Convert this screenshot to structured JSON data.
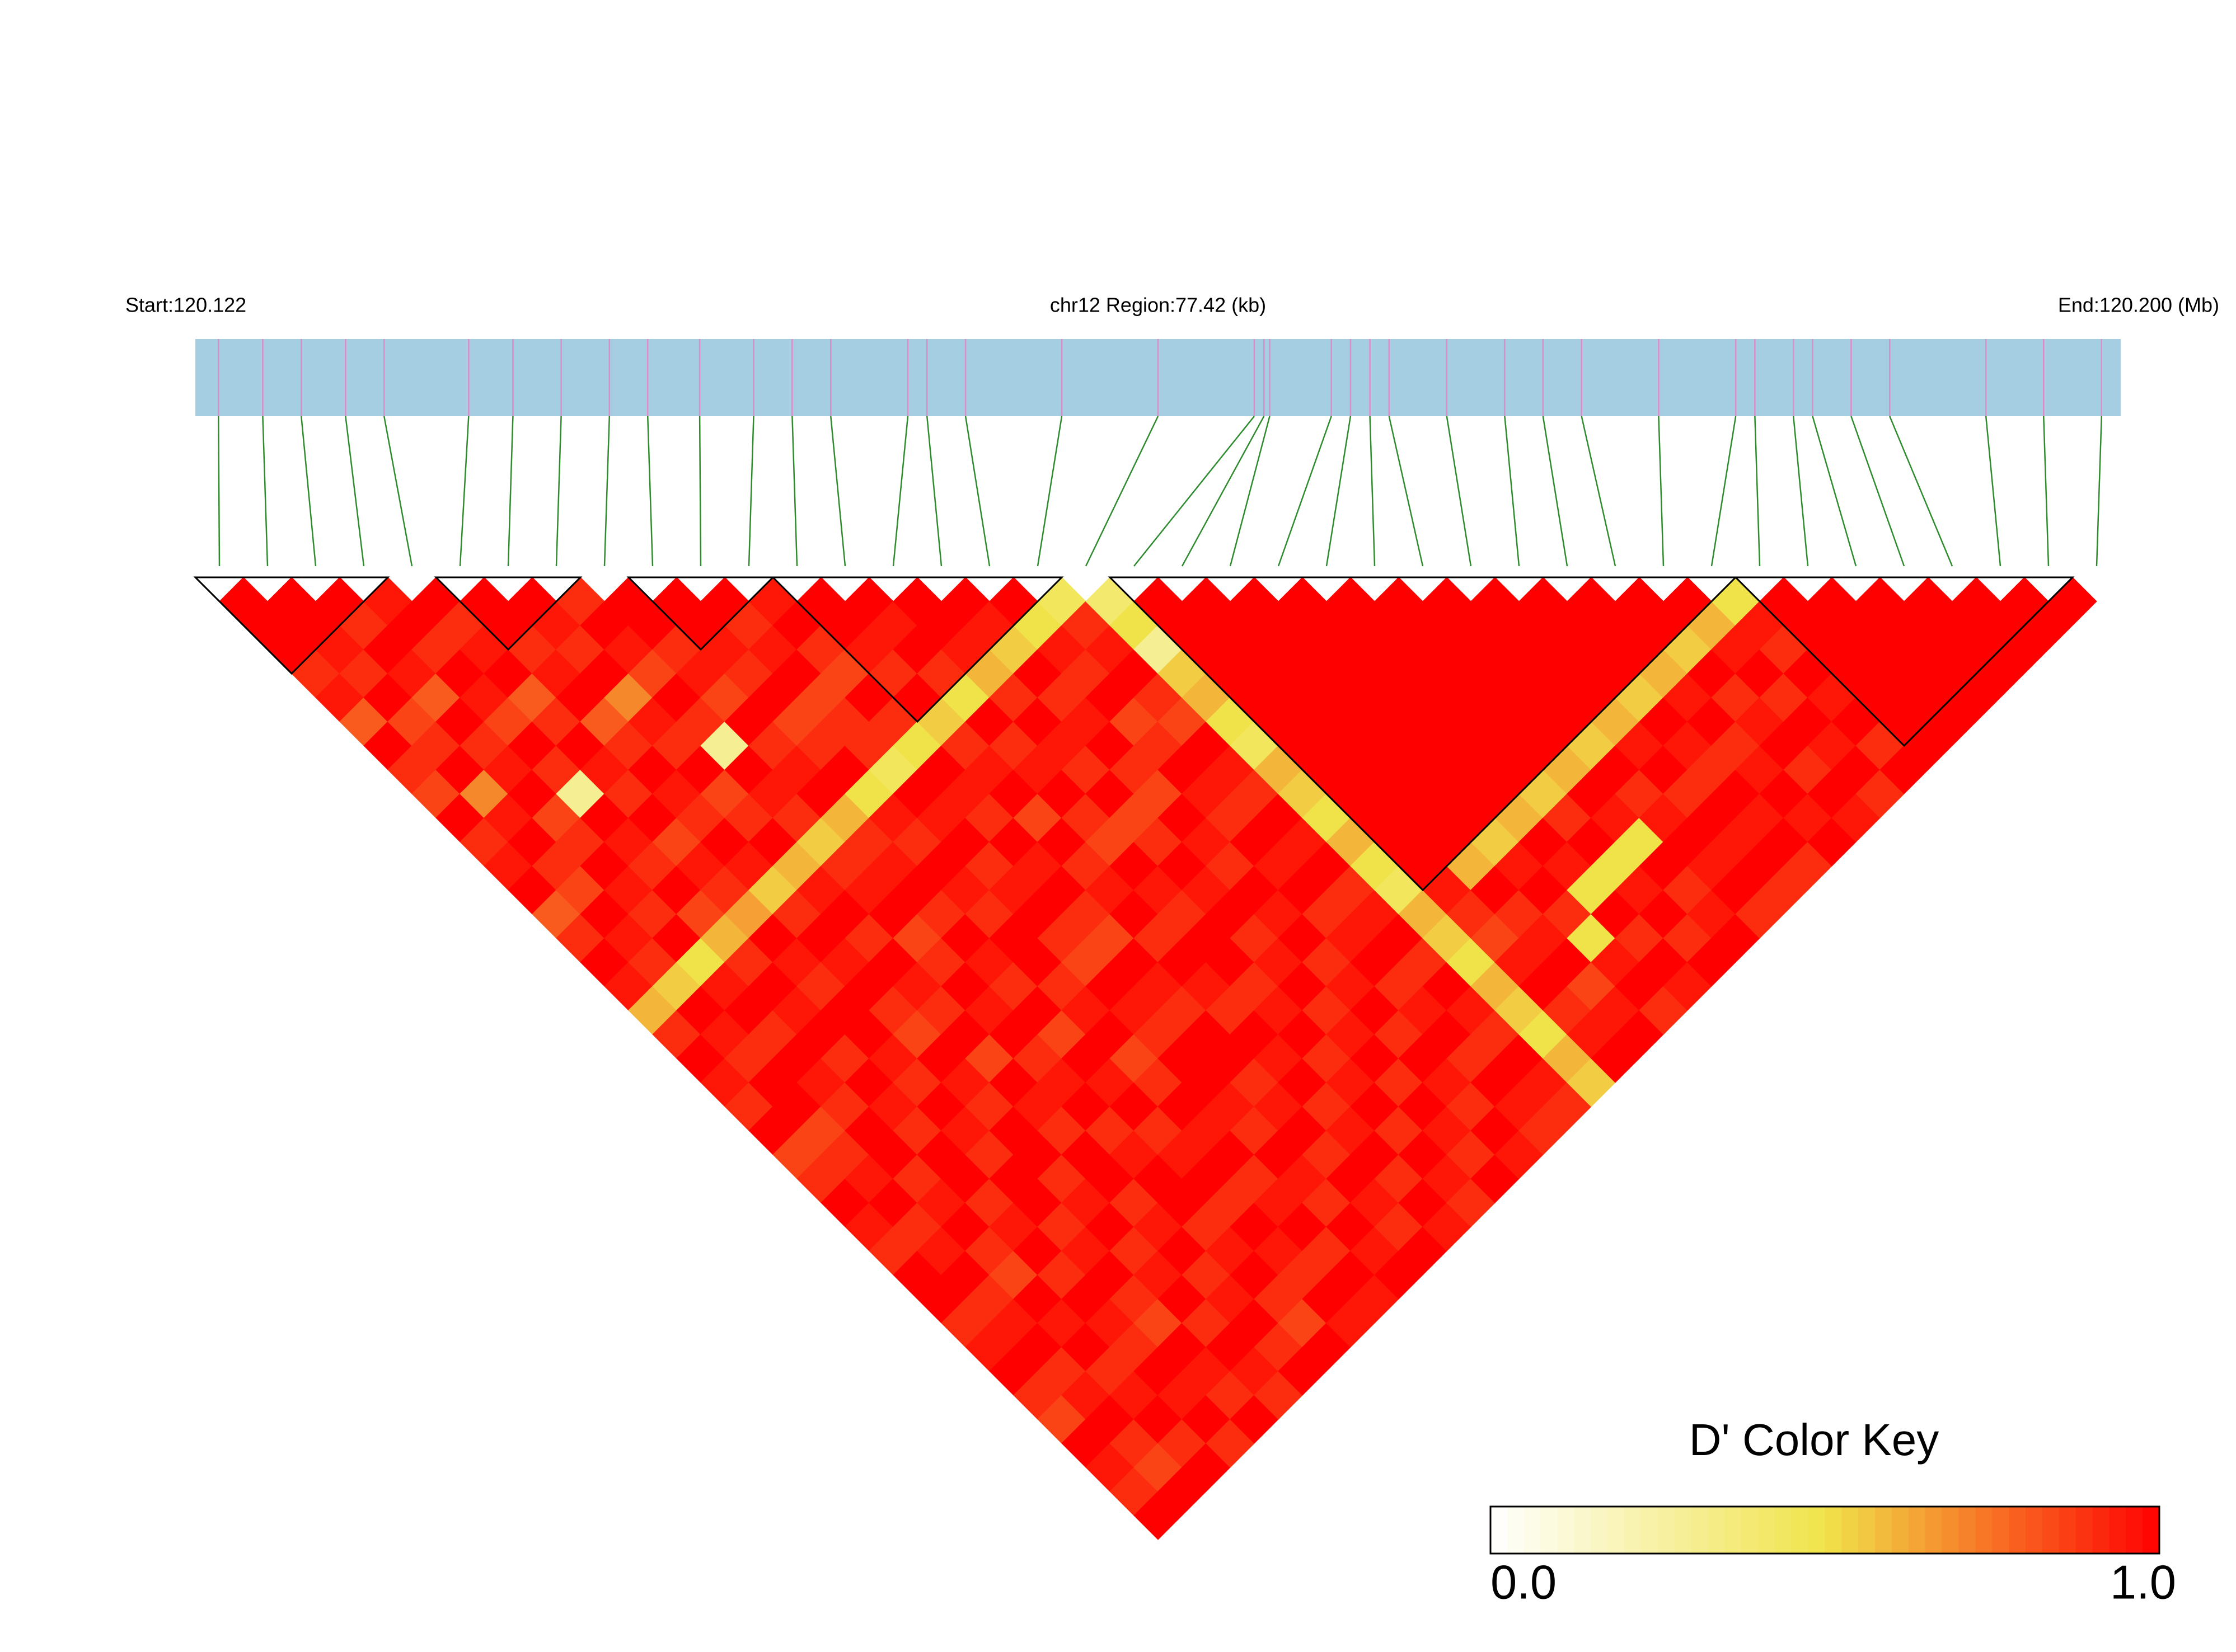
{
  "chart_data": {
    "type": "ld-heatmap",
    "start_label": "Start:120.122",
    "region_label": "chr12 Region:77.42 (kb)",
    "end_label": "End:120.200 (Mb)",
    "xlim": [
      120.1225,
      120.19992
    ],
    "positions": [
      120.12343,
      120.12521,
      120.12676,
      120.12854,
      120.13009,
      120.13349,
      120.13527,
      120.13721,
      120.13915,
      120.14069,
      120.14278,
      120.14495,
      120.1465,
      120.14805,
      120.15115,
      120.15192,
      120.15347,
      120.15734,
      120.16121,
      120.16508,
      120.16547,
      120.1657,
      120.16818,
      120.16895,
      120.16973,
      120.1705,
      120.17282,
      120.17515,
      120.17669,
      120.17824,
      120.18134,
      120.18444,
      120.18521,
      120.18676,
      120.18753,
      120.18908,
      120.19063,
      120.1945,
      120.19682,
      120.19915
    ],
    "ld": [
      [
        1,
        1,
        1,
        0.9,
        0.95,
        0.8,
        1,
        0.9,
        0.85,
        1,
        0.9,
        0.95,
        1,
        0.8,
        0.9,
        1,
        0.95,
        0.6,
        0.9,
        1,
        0.95,
        0.9,
        1,
        0.85,
        0.9,
        1,
        0.95,
        0.9,
        1,
        1,
        0.9,
        0.95,
        1,
        0.9,
        0.85,
        1,
        0.95,
        0.9,
        1
      ],
      [
        1,
        1,
        0.95,
        0.9,
        1,
        0.85,
        0.9,
        1,
        0.7,
        0.95,
        1,
        0.9,
        0.85,
        1,
        0.95,
        0.9,
        0.55,
        1,
        0.95,
        0.9,
        1,
        1,
        0.85,
        0.9,
        0.95,
        1,
        0.9,
        0.95,
        1,
        0.9,
        0.95,
        1,
        0.9,
        0.95,
        1,
        0.9,
        0.85,
        1
      ],
      [
        1,
        0.9,
        1,
        0.95,
        0.8,
        1,
        0.9,
        0.95,
        1,
        0.85,
        0.9,
        1,
        0.95,
        0.9,
        1,
        0.5,
        0.95,
        1,
        0.9,
        1,
        0.95,
        0.9,
        1,
        1,
        0.9,
        0.95,
        1,
        0.9,
        0.85,
        1,
        0.95,
        1,
        0.9,
        0.95,
        1,
        0.9,
        1
      ],
      [
        0.95,
        1,
        0.9,
        1,
        0.95,
        0.85,
        1,
        0.9,
        0.3,
        1,
        0.95,
        0.9,
        1,
        0.85,
        0.6,
        0.9,
        1,
        0.95,
        1,
        0.9,
        1,
        0.95,
        0.9,
        1,
        1,
        0.9,
        0.95,
        1,
        0.9,
        1,
        0.95,
        0.9,
        1,
        0.95,
        1,
        0.9
      ],
      [
        1,
        0.9,
        0.95,
        1,
        0.8,
        0.9,
        1,
        0.95,
        0.9,
        1,
        0.85,
        0.95,
        0.9,
        0.65,
        1,
        0.95,
        0.9,
        1,
        1,
        0.95,
        0.9,
        1,
        0.95,
        0.9,
        1,
        1,
        0.9,
        0.95,
        1,
        0.9,
        0.85,
        1,
        0.95,
        0.9,
        1
      ],
      [
        1,
        1,
        0.9,
        0.95,
        1,
        0.8,
        0.9,
        1,
        0.95,
        0.9,
        1,
        0.95,
        0.55,
        0.9,
        1,
        0.95,
        1,
        0.9,
        0.85,
        1,
        0.95,
        0.9,
        1,
        1,
        0.9,
        0.95,
        1,
        0.9,
        0.95,
        1,
        0.9,
        1,
        0.95,
        0.9
      ],
      [
        1,
        0.95,
        0.9,
        1,
        0.7,
        0.95,
        0.9,
        1,
        0.85,
        0.9,
        1,
        0.6,
        0.95,
        1,
        0.9,
        1,
        0.95,
        0.9,
        1,
        0.85,
        1,
        0.95,
        0.9,
        1,
        1,
        0.9,
        0.95,
        1,
        0.9,
        0.95,
        1,
        0.9,
        1
      ],
      [
        0.9,
        1,
        0.95,
        0.85,
        1,
        0.9,
        0.3,
        1,
        0.95,
        0.9,
        0.55,
        0.9,
        0.95,
        1,
        0.85,
        0.9,
        1,
        0.95,
        1,
        0.9,
        0.95,
        1,
        0.9,
        0.95,
        1,
        1,
        0.9,
        0.95,
        1,
        0.9,
        0.85,
        1
      ],
      [
        1,
        1,
        0.9,
        0.95,
        0.85,
        1,
        0.9,
        0.95,
        1,
        0.6,
        0.9,
        0.95,
        1,
        0.9,
        1,
        0.95,
        0.9,
        1,
        0.85,
        1,
        0.95,
        1,
        0.9,
        0.95,
        1,
        0.9,
        1,
        0.95,
        0.9,
        1,
        0.95
      ],
      [
        1,
        1,
        0.95,
        0.9,
        1,
        0.85,
        0.9,
        1,
        0.5,
        0.95,
        0.9,
        1,
        0.95,
        0.9,
        1,
        1,
        0.9,
        0.95,
        1,
        0.85,
        0.9,
        1,
        0.95,
        1,
        0.9,
        0.95,
        1,
        0.9,
        1,
        0.95
      ],
      [
        1,
        0.9,
        0.95,
        1,
        0.85,
        0.9,
        0.9,
        0.45,
        1,
        0.95,
        1,
        0.9,
        0.95,
        1,
        0.9,
        0.85,
        1,
        0.95,
        0.9,
        1,
        1,
        0.95,
        0.9,
        1,
        0.95,
        0.9,
        1,
        0.95,
        1
      ],
      [
        0.95,
        1,
        0.9,
        0.85,
        1,
        0.9,
        0.5,
        1,
        0.95,
        0.9,
        1,
        0.95,
        1,
        0.9,
        0.85,
        1,
        0.95,
        0.9,
        1,
        1,
        0.9,
        0.95,
        1,
        0.9,
        1,
        0.95,
        0.9,
        1
      ],
      [
        1,
        1,
        0.95,
        0.9,
        1,
        0.55,
        0.9,
        0.95,
        1,
        0.85,
        1,
        0.9,
        0.95,
        1,
        0.9,
        1,
        0.95,
        0.9,
        1,
        0.95,
        1,
        0.9,
        0.95,
        1,
        0.9,
        1,
        0.95
      ],
      [
        1,
        0.95,
        1,
        0.9,
        0.5,
        1,
        0.9,
        0.95,
        1,
        0.9,
        0.85,
        1,
        0.95,
        0.9,
        1,
        1,
        0.9,
        0.95,
        1,
        0.9,
        0.95,
        1,
        0.9,
        1,
        0.95,
        0.9
      ],
      [
        1,
        1,
        0.95,
        0.6,
        0.9,
        1,
        0.95,
        0.9,
        1,
        0.85,
        0.9,
        1,
        0.95,
        1,
        0.9,
        0.95,
        1,
        0.9,
        0.95,
        1,
        0.9,
        1,
        0.95,
        0.9,
        1
      ],
      [
        1,
        0.95,
        0.55,
        1,
        0.9,
        0.95,
        1,
        0.9,
        0.85,
        1,
        0.95,
        0.9,
        1,
        0.95,
        1,
        0.9,
        0.95,
        1,
        0.9,
        1,
        0.95,
        0.9,
        1,
        0.95
      ],
      [
        1,
        0.5,
        0.95,
        0.9,
        1,
        0.85,
        0.9,
        1,
        0.95,
        0.9,
        1,
        0.95,
        1,
        0.9,
        0.95,
        1,
        0.9,
        0.95,
        1,
        0.9,
        1,
        0.95,
        0.9
      ],
      [
        0.45,
        0.9,
        0.95,
        1,
        0.9,
        0.85,
        1,
        0.95,
        0.9,
        1,
        0.95,
        1,
        0.9,
        0.95,
        1,
        0.9,
        1,
        0.95,
        0.9,
        1,
        0.95,
        0.9
      ],
      [
        0.4,
        0.5,
        0.3,
        0.55,
        0.6,
        0.5,
        0.45,
        0.6,
        0.55,
        0.5,
        0.6,
        0.5,
        0.45,
        0.6,
        0.55,
        0.5,
        0.6,
        0.55,
        0.5,
        0.6,
        0.55
      ],
      [
        1,
        1,
        1,
        1,
        1,
        1,
        1,
        1,
        1,
        1,
        1,
        1,
        0.95,
        0.9,
        0.85,
        0.95,
        1,
        0.9,
        0.95,
        1
      ],
      [
        1,
        1,
        1,
        1,
        1,
        1,
        1,
        1,
        1,
        1,
        1,
        0.6,
        1,
        0.9,
        0.95,
        1,
        0.85,
        0.95,
        1
      ],
      [
        1,
        1,
        1,
        1,
        1,
        1,
        1,
        1,
        1,
        1,
        0.55,
        0.95,
        1,
        0.9,
        0.5,
        0.95,
        1,
        0.9
      ],
      [
        1,
        1,
        1,
        1,
        1,
        1,
        1,
        1,
        1,
        0.6,
        1,
        0.95,
        0.5,
        1,
        0.9,
        1,
        0.95
      ],
      [
        1,
        1,
        1,
        1,
        1,
        1,
        1,
        1,
        0.55,
        0.9,
        1,
        0.5,
        0.95,
        1,
        0.9,
        1
      ],
      [
        1,
        1,
        1,
        1,
        1,
        1,
        1,
        0.6,
        1,
        0.95,
        0.5,
        1,
        0.9,
        0.95,
        1
      ],
      [
        1,
        1,
        1,
        1,
        1,
        1,
        0.55,
        1,
        0.9,
        0.95,
        1,
        0.95,
        1,
        0.9
      ],
      [
        1,
        1,
        1,
        1,
        1,
        0.6,
        0.95,
        1,
        0.9,
        1,
        0.95,
        1,
        0.9
      ],
      [
        1,
        1,
        1,
        1,
        0.55,
        1,
        0.95,
        0.9,
        1,
        0.95,
        1,
        0.9
      ],
      [
        1,
        1,
        1,
        0.6,
        0.95,
        1,
        0.9,
        0.95,
        1,
        0.95,
        1
      ],
      [
        1,
        1,
        0.55,
        1,
        0.9,
        0.95,
        1,
        0.9,
        1,
        0.95
      ],
      [
        1,
        0.6,
        0.95,
        1,
        0.9,
        1,
        0.95,
        1,
        0.9
      ],
      [
        0.5,
        0.95,
        0.9,
        1,
        0.95,
        1,
        0.9,
        1
      ],
      [
        1,
        1,
        1,
        1,
        1,
        1,
        1
      ],
      [
        1,
        1,
        1,
        1,
        1,
        1
      ],
      [
        1,
        1,
        1,
        1,
        1
      ],
      [
        1,
        1,
        1,
        1
      ],
      [
        1,
        1,
        1
      ],
      [
        1,
        1
      ],
      [
        1
      ]
    ],
    "blocks": [
      [
        0,
        3
      ],
      [
        5,
        7
      ],
      [
        9,
        11
      ],
      [
        12,
        17
      ],
      [
        19,
        31
      ],
      [
        32,
        38
      ]
    ],
    "colors": [
      "#ffffff",
      "#f0e34a",
      "#ff0000"
    ],
    "bar_color": "#a6cee3",
    "marker_color": "#dc8cc8",
    "connector_color": "#2e8b2e",
    "key_title": "D' Color Key",
    "clim": [
      0,
      1
    ],
    "cticks": [
      {
        "value": 0,
        "label": "0.0"
      },
      {
        "value": 1,
        "label": "1.0"
      }
    ]
  }
}
